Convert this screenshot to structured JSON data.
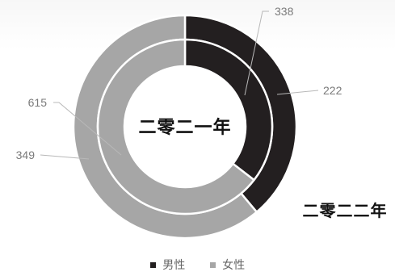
{
  "chart_data": {
    "type": "pie",
    "categories": [
      "男性",
      "女性"
    ],
    "series": [
      {
        "name": "二零二一年",
        "values": [
          338,
          615
        ]
      },
      {
        "name": "二零二二年",
        "values": [
          222,
          349
        ]
      }
    ],
    "colors": [
      "#231f20",
      "#a6a6a6"
    ],
    "legend": [
      {
        "name": "男性",
        "color": "#231f20"
      },
      {
        "name": "女性",
        "color": "#a6a6a6"
      }
    ],
    "legend_position": "bottom-center",
    "center_label": "二零二一年",
    "outer_label": "二零二二年"
  }
}
